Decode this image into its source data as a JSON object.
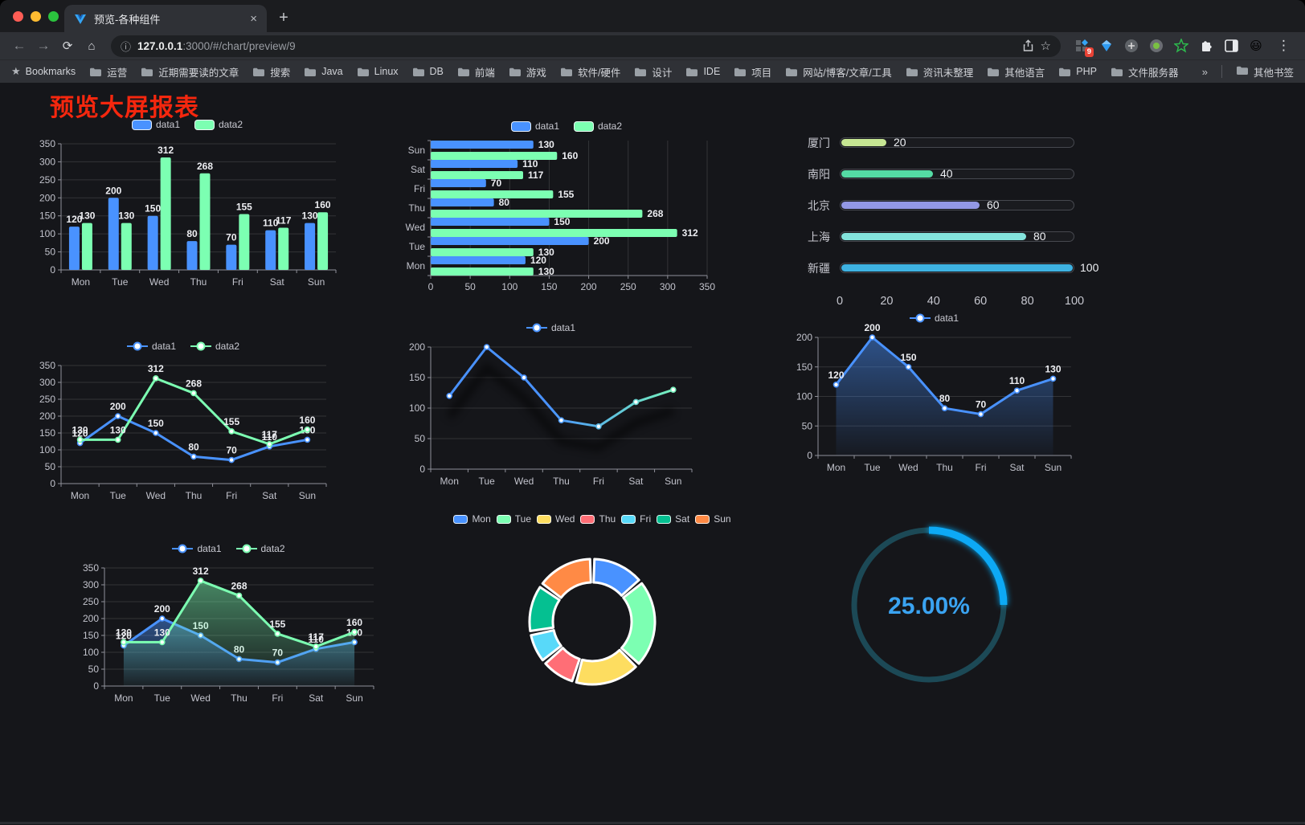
{
  "browser": {
    "tab_title": "预览-各种组件",
    "url_host": "127.0.0.1",
    "url_rest": ":3000/#/chart/preview/9",
    "extensions_badge": "9",
    "icons": {
      "back": "←",
      "forward": "→",
      "reload": "⟳",
      "home": "⌂",
      "info": "ⓘ",
      "star": "☆",
      "menu": "⋮",
      "plus": "+",
      "close": "×",
      "emoji": "😃"
    },
    "bookmarks": {
      "root": "Bookmarks",
      "items": [
        "运营",
        "近期需要读的文章",
        "搜索",
        "Java",
        "Linux",
        "DB",
        "前端",
        "游戏",
        "软件/硬件",
        "设计",
        "IDE",
        "项目",
        "网站/博客/文章/工具",
        "资讯未整理",
        "其他语言",
        "PHP",
        "文件服务器"
      ],
      "overflow": "»",
      "other": "其他书签"
    }
  },
  "page": {
    "title": "预览大屏报表",
    "title_color": "#f5270e"
  },
  "palette": [
    "#4992ff",
    "#7cffb2",
    "#fddd60",
    "#ff6e76",
    "#58d9f9",
    "#05c091",
    "#ff8a45"
  ],
  "chart_data": [
    {
      "type": "bar",
      "legend": "rect",
      "categories": [
        "Mon",
        "Tue",
        "Wed",
        "Thu",
        "Fri",
        "Sat",
        "Sun"
      ],
      "series": [
        {
          "name": "data1",
          "color": "#4992ff",
          "values": [
            120,
            200,
            150,
            80,
            70,
            110,
            130
          ],
          "labels": true
        },
        {
          "name": "data2",
          "color": "#7cffb2",
          "values": [
            130,
            130,
            312,
            268,
            155,
            117,
            160
          ],
          "labels": true
        }
      ],
      "ylim": [
        0,
        350
      ],
      "ytick": 50,
      "grid": true,
      "legend_position": "top"
    },
    {
      "type": "hbar",
      "legend": "rect",
      "categories": [
        "Mon",
        "Tue",
        "Wed",
        "Thu",
        "Fri",
        "Sat",
        "Sun"
      ],
      "series": [
        {
          "name": "data1",
          "color": "#4992ff",
          "values": [
            120,
            200,
            150,
            80,
            70,
            110,
            130
          ],
          "labels": true
        },
        {
          "name": "data2",
          "color": "#7cffb2",
          "values": [
            130,
            130,
            312,
            268,
            155,
            117,
            160
          ],
          "labels": true
        }
      ],
      "xlim": [
        0,
        350
      ],
      "xtick": 50,
      "grid": true,
      "legend_position": "top"
    },
    {
      "type": "progress",
      "max": 100,
      "ticks": [
        0,
        20,
        40,
        60,
        80,
        100
      ],
      "rows": [
        {
          "label": "厦门",
          "value": 20,
          "color": "#c6e693"
        },
        {
          "label": "南阳",
          "value": 40,
          "color": "#54dba4"
        },
        {
          "label": "北京",
          "value": 60,
          "color": "#9398e5"
        },
        {
          "label": "上海",
          "value": 80,
          "color": "#83e3dc"
        },
        {
          "label": "新疆",
          "value": 100,
          "color": "#3eb2e2"
        }
      ]
    },
    {
      "type": "line",
      "legend": "line",
      "categories": [
        "Mon",
        "Tue",
        "Wed",
        "Thu",
        "Fri",
        "Sat",
        "Sun"
      ],
      "series": [
        {
          "name": "data1",
          "color": "#4992ff",
          "values": [
            120,
            200,
            150,
            80,
            70,
            110,
            130
          ],
          "labels": true
        },
        {
          "name": "data2",
          "color": "#7cffb2",
          "values": [
            130,
            130,
            312,
            268,
            155,
            117,
            160
          ],
          "labels": true
        }
      ],
      "ylim": [
        0,
        350
      ],
      "ytick": 50,
      "grid": true,
      "legend_position": "top"
    },
    {
      "type": "line",
      "legend": "line",
      "categories": [
        "Mon",
        "Tue",
        "Wed",
        "Thu",
        "Fri",
        "Sat",
        "Sun"
      ],
      "series": [
        {
          "name": "data1",
          "color": "#4992ff",
          "gradient": [
            "#4992ff",
            "#7cffb2"
          ],
          "shadow": true,
          "values": [
            120,
            200,
            150,
            80,
            70,
            110,
            130
          ],
          "labels": false
        }
      ],
      "ylim": [
        0,
        200
      ],
      "ytick": 50,
      "grid": true,
      "legend_position": "top"
    },
    {
      "type": "line",
      "legend": "line",
      "categories": [
        "Mon",
        "Tue",
        "Wed",
        "Thu",
        "Fri",
        "Sat",
        "Sun"
      ],
      "series": [
        {
          "name": "data1",
          "color": "#4992ff",
          "area": true,
          "values": [
            120,
            200,
            150,
            80,
            70,
            110,
            130
          ],
          "labels": true
        }
      ],
      "ylim": [
        0,
        200
      ],
      "ytick": 50,
      "grid": true,
      "legend_position": "top"
    },
    {
      "type": "line",
      "legend": "line",
      "categories": [
        "Mon",
        "Tue",
        "Wed",
        "Thu",
        "Fri",
        "Sat",
        "Sun"
      ],
      "series": [
        {
          "name": "data1",
          "color": "#4992ff",
          "area": true,
          "values": [
            120,
            200,
            150,
            80,
            70,
            110,
            130
          ],
          "labels": true
        },
        {
          "name": "data2",
          "color": "#7cffb2",
          "area": true,
          "values": [
            130,
            130,
            312,
            268,
            155,
            117,
            160
          ],
          "labels": true
        }
      ],
      "ylim": [
        0,
        350
      ],
      "ytick": 50,
      "grid": true,
      "legend_position": "top"
    },
    {
      "type": "pie",
      "legend": "rect",
      "legend_small": true,
      "legend_position": "top",
      "items": [
        {
          "label": "Mon",
          "value": 120,
          "color": "#4992ff"
        },
        {
          "label": "Tue",
          "value": 200,
          "color": "#7cffb2"
        },
        {
          "label": "Wed",
          "value": 150,
          "color": "#fddd60"
        },
        {
          "label": "Thu",
          "value": 80,
          "color": "#ff6e76"
        },
        {
          "label": "Fri",
          "value": 70,
          "color": "#58d9f9"
        },
        {
          "label": "Sat",
          "value": 110,
          "color": "#05c091"
        },
        {
          "label": "Sun",
          "value": 130,
          "color": "#ff8a45"
        }
      ]
    },
    {
      "type": "gauge",
      "value": 25,
      "label": "25.00%",
      "color": "#0ca9f5",
      "track": "#1c4956",
      "text_color": "#3aa3f1"
    }
  ]
}
